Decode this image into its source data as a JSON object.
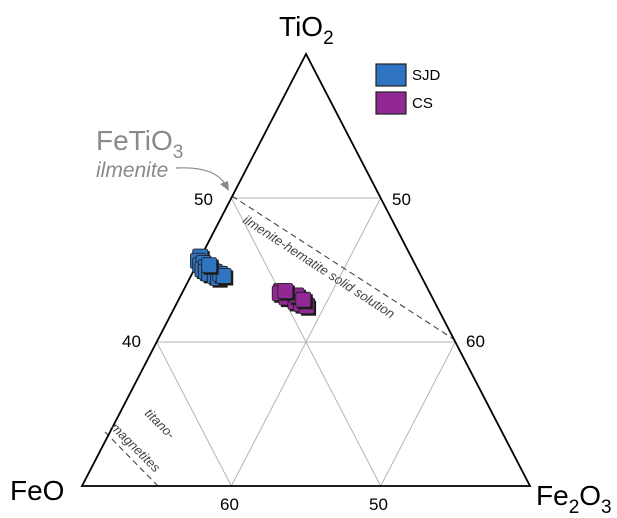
{
  "vertices": {
    "top": {
      "text": "TiO",
      "sub": "2"
    },
    "left": {
      "text": "FeO",
      "sub": ""
    },
    "right": {
      "text": "Fe",
      "sub": "2",
      "text2": "O",
      "sub2": "3"
    }
  },
  "ticks": {
    "left_edge": "50",
    "left_edge_2": "40",
    "right_edge": "50",
    "right_edge_2": "60",
    "bottom_1": "60",
    "bottom_2": "50"
  },
  "annotations": {
    "ilmenite_formula": "FeTiO",
    "ilmenite_sub": "3",
    "ilmenite_name": "ilmenite",
    "solid_solution": "ilmenite-hematite solid solution",
    "titano_1": "titano-",
    "titano_2": "magnetites"
  },
  "colors": {
    "SJD": "#2f74c0",
    "CS": "#912894",
    "grid": "#b5b5b5",
    "frame": "#000000"
  },
  "legend": [
    {
      "label": "SJD",
      "color": "#2f74c0"
    },
    {
      "label": "CS",
      "color": "#912894"
    }
  ],
  "chart_data": {
    "type": "scatter",
    "series": [
      {
        "name": "SJD",
        "points": [
          [
            53,
            47,
            0
          ],
          [
            52,
            48,
            0
          ],
          [
            51,
            48,
            1
          ],
          [
            51.5,
            47,
            1.5
          ],
          [
            50,
            48,
            2
          ],
          [
            50.5,
            47,
            2.5
          ],
          [
            49.5,
            47.5,
            3
          ],
          [
            50,
            46,
            4
          ],
          [
            49,
            47,
            4
          ],
          [
            49.5,
            45.5,
            5
          ],
          [
            48.5,
            46,
            5.5
          ],
          [
            48,
            45.5,
            6.5
          ],
          [
            49,
            44.5,
            6.5
          ],
          [
            48.5,
            44,
            7.5
          ],
          [
            51,
            46,
            3
          ]
        ]
      },
      {
        "name": "CS",
        "points": [
          [
            45,
            33,
            22
          ],
          [
            44.5,
            32.5,
            23
          ],
          [
            44,
            32,
            24
          ],
          [
            44,
            31.5,
            24.5
          ],
          [
            43.5,
            31,
            25.5
          ],
          [
            43,
            30.5,
            26.5
          ],
          [
            43,
            30,
            27
          ],
          [
            42.5,
            29.5,
            28
          ],
          [
            42,
            29,
            29
          ],
          [
            44.5,
            33.5,
            22
          ],
          [
            43.5,
            32.5,
            24
          ],
          [
            42.5,
            31,
            26.5
          ],
          [
            42,
            30,
            28
          ],
          [
            41.5,
            29,
            29.5
          ],
          [
            44,
            30,
            26
          ],
          [
            43,
            29,
            28
          ],
          [
            45,
            32,
            23
          ]
        ]
      }
    ]
  }
}
